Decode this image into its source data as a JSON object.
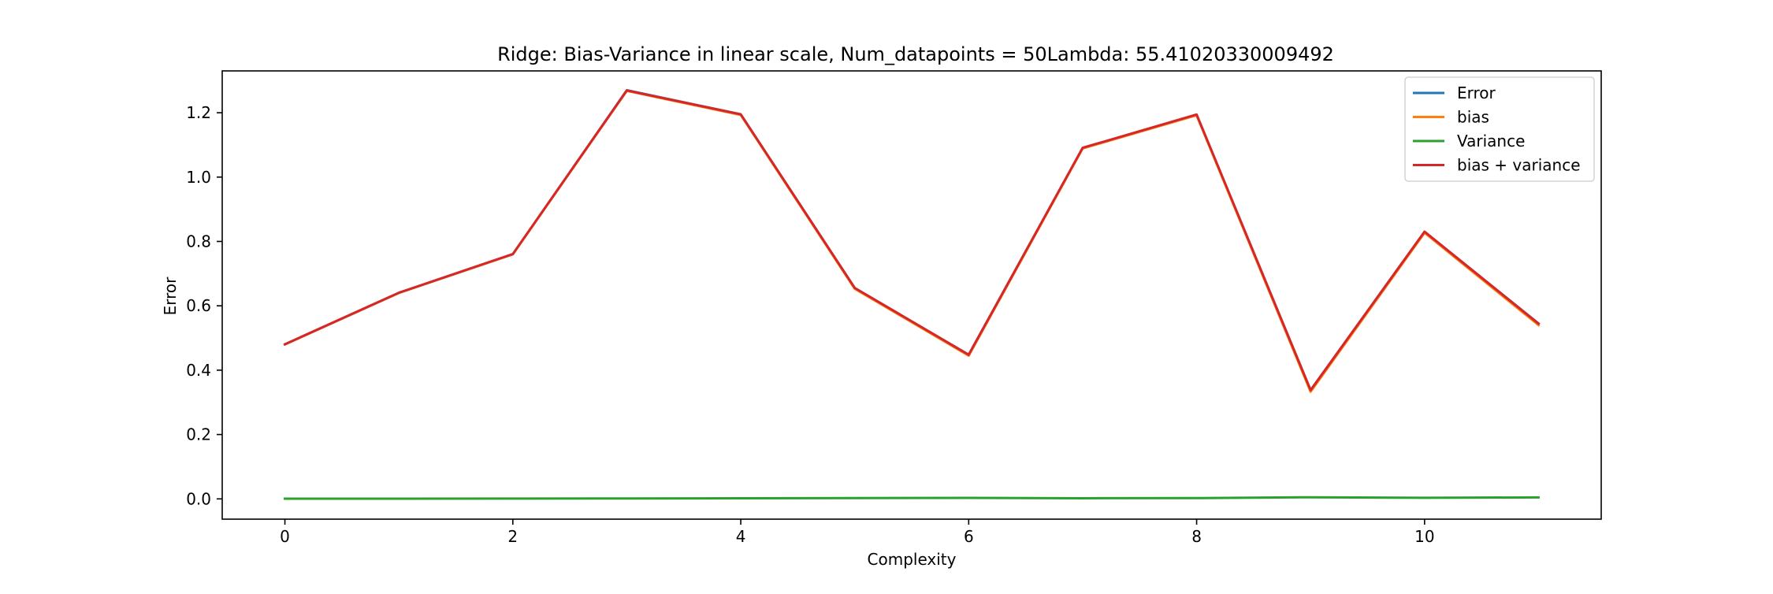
{
  "chart_data": {
    "type": "line",
    "title": "Ridge: Bias-Variance in linear scale, Num_datapoints = 50Lambda: 55.41020330009492",
    "xlabel": "Complexity",
    "ylabel": "Error",
    "xlim": [
      -0.55,
      11.55
    ],
    "ylim": [
      -0.063,
      1.33
    ],
    "xticks": [
      0,
      2,
      4,
      6,
      8,
      10
    ],
    "xtick_labels": [
      "0",
      "2",
      "4",
      "6",
      "8",
      "10"
    ],
    "yticks": [
      0.0,
      0.2,
      0.4,
      0.6,
      0.8,
      1.0,
      1.2
    ],
    "ytick_labels": [
      "0.0",
      "0.2",
      "0.4",
      "0.6",
      "0.8",
      "1.0",
      "1.2"
    ],
    "grid": false,
    "legend_position": "top-right",
    "x": [
      0,
      1,
      2,
      3,
      4,
      5,
      6,
      7,
      8,
      9,
      10,
      11
    ],
    "series": [
      {
        "name": "Error",
        "color": "#1f77b4",
        "values": [
          0.48,
          0.64,
          0.76,
          1.27,
          1.195,
          0.655,
          0.448,
          1.09,
          1.193,
          0.338,
          0.83,
          0.545
        ]
      },
      {
        "name": "bias",
        "color": "#ff7f0e",
        "values": [
          0.48,
          0.64,
          0.76,
          1.268,
          1.193,
          0.653,
          0.445,
          1.089,
          1.192,
          0.333,
          0.827,
          0.54
        ]
      },
      {
        "name": "Variance",
        "color": "#2ca02c",
        "values": [
          0.0005,
          0.0007,
          0.001,
          0.0012,
          0.002,
          0.0025,
          0.003,
          0.002,
          0.0025,
          0.005,
          0.0035,
          0.0045
        ]
      },
      {
        "name": "bias + variance",
        "color": "#d62728",
        "values": [
          0.4805,
          0.6407,
          0.761,
          1.2692,
          1.195,
          0.6555,
          0.448,
          1.091,
          1.1945,
          0.338,
          0.8305,
          0.5445
        ]
      }
    ]
  }
}
